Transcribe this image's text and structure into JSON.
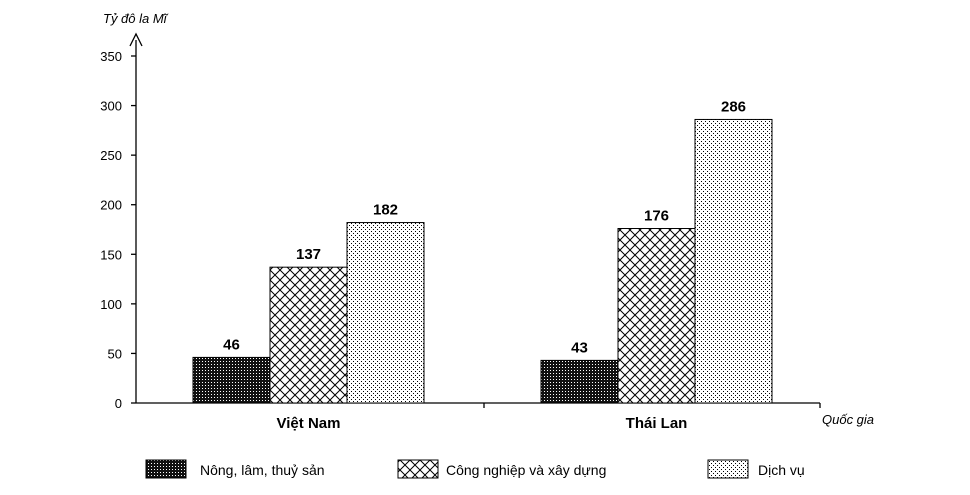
{
  "chart_data": {
    "type": "bar",
    "ylabel": "Tỷ đô la Mĩ",
    "xlabel": "Quốc gia",
    "categories": [
      "Việt Nam",
      "Thái Lan"
    ],
    "series": [
      {
        "name": "Nông, lâm, thuỷ sản",
        "values": [
          46,
          43
        ],
        "pattern": "dense-dots"
      },
      {
        "name": "Công nghiệp và xây dựng",
        "values": [
          137,
          176
        ],
        "pattern": "crosshatch"
      },
      {
        "name": "Dịch vụ",
        "values": [
          182,
          286
        ],
        "pattern": "sparse-dots"
      }
    ],
    "ylim": [
      0,
      350
    ],
    "yticks": [
      0,
      50,
      100,
      150,
      200,
      250,
      300,
      350
    ],
    "grid": false,
    "legend_position": "bottom"
  }
}
